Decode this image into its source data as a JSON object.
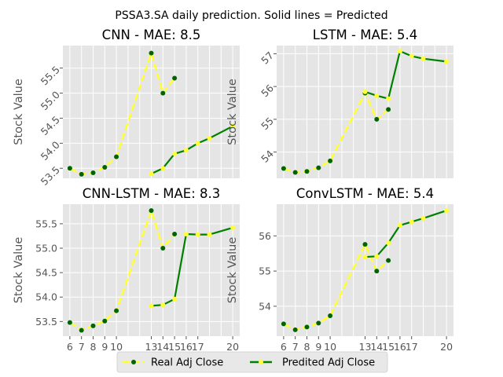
{
  "figure": {
    "suptitle": "PSSA3.SA daily prediction. Solid lines = Predicted"
  },
  "legend": {
    "placement": "bottom-center",
    "entries": [
      {
        "label": "Real Adj Close",
        "line_color": "#ffff33",
        "marker_color": "#006400",
        "style": "dashed"
      },
      {
        "label": "Predited Adj Close",
        "line_color": "#008000",
        "marker_color": "#ffff33",
        "style": "solid"
      }
    ]
  },
  "chart_data": [
    {
      "type": "line",
      "title": "CNN - MAE: 8.5",
      "ylabel": "Stock Value",
      "xlabel": "",
      "grid": true,
      "xlim": [
        5.4,
        20.6
      ],
      "ylim": [
        53.3,
        55.95
      ],
      "x_ticks": [],
      "y_ticks": [
        53.5,
        54.0,
        54.5,
        55.0,
        55.5
      ],
      "y_tick_labels": [
        "53.5",
        "54.0",
        "54.5",
        "55.0",
        "55.5"
      ],
      "y_tick_rotation": 45,
      "series": [
        {
          "name": "Real Adj Close",
          "x": [
            6,
            7,
            8,
            9,
            10,
            13,
            14,
            15
          ],
          "values": [
            53.5,
            53.38,
            53.41,
            53.52,
            53.73,
            55.8,
            55.0,
            55.3
          ]
        },
        {
          "name": "Predited Adj Close",
          "x": [
            13,
            14,
            15,
            16,
            17,
            18,
            20
          ],
          "values": [
            53.39,
            53.5,
            53.79,
            53.86,
            54.0,
            54.1,
            54.34
          ]
        }
      ]
    },
    {
      "type": "line",
      "title": "LSTM - MAE: 5.4",
      "ylabel": "Stock Value",
      "xlabel": "",
      "grid": true,
      "xlim": [
        5.4,
        20.6
      ],
      "ylim": [
        53.2,
        57.25
      ],
      "x_ticks": [],
      "y_ticks": [
        54,
        55,
        56,
        57
      ],
      "y_tick_labels": [
        "54",
        "55",
        "56",
        "57"
      ],
      "y_tick_rotation": 45,
      "series": [
        {
          "name": "Real Adj Close",
          "x": [
            6,
            7,
            8,
            9,
            10,
            13,
            14,
            15
          ],
          "values": [
            53.5,
            53.38,
            53.41,
            53.52,
            53.73,
            55.8,
            55.0,
            55.3
          ]
        },
        {
          "name": "Predited Adj Close",
          "x": [
            13,
            14,
            15,
            16,
            17,
            18,
            20
          ],
          "values": [
            55.84,
            55.72,
            55.63,
            57.08,
            56.93,
            56.85,
            56.76
          ]
        }
      ]
    },
    {
      "type": "line",
      "title": "CNN-LSTM - MAE: 8.3",
      "ylabel": "Stock Value",
      "xlabel": "",
      "grid": true,
      "xlim": [
        5.4,
        20.6
      ],
      "ylim": [
        53.2,
        55.9
      ],
      "x_ticks": [
        6,
        7,
        8,
        9,
        10,
        13,
        14,
        15,
        16,
        17,
        20
      ],
      "x_tick_labels": [
        "6",
        "7",
        "8",
        "9",
        "10",
        "13",
        "14",
        "15",
        "16",
        "17",
        "20"
      ],
      "y_ticks": [
        53.5,
        54.0,
        54.5,
        55.0,
        55.5
      ],
      "y_tick_labels": [
        "53.5",
        "54.0",
        "54.5",
        "55.0",
        "55.5"
      ],
      "y_tick_rotation": 0,
      "series": [
        {
          "name": "Real Adj Close",
          "x": [
            6,
            7,
            8,
            9,
            10,
            13,
            14,
            15
          ],
          "values": [
            53.48,
            53.32,
            53.41,
            53.51,
            53.72,
            55.77,
            55.0,
            55.29
          ]
        },
        {
          "name": "Predited Adj Close",
          "x": [
            13,
            14,
            15,
            16,
            17,
            18,
            20
          ],
          "values": [
            53.82,
            53.84,
            53.96,
            55.29,
            55.28,
            55.28,
            55.42
          ]
        }
      ]
    },
    {
      "type": "line",
      "title": "ConvLSTM - MAE: 5.4",
      "ylabel": "Stock Value",
      "xlabel": "",
      "grid": true,
      "xlim": [
        5.4,
        20.6
      ],
      "ylim": [
        53.15,
        56.9
      ],
      "x_ticks": [
        6,
        7,
        8,
        9,
        10,
        13,
        14,
        15,
        16,
        17,
        20
      ],
      "x_tick_labels": [
        "6",
        "7",
        "8",
        "9",
        "10",
        "13",
        "14",
        "15",
        "16",
        "17",
        "20"
      ],
      "y_ticks": [
        54,
        55,
        56
      ],
      "y_tick_labels": [
        "54",
        "55",
        "56"
      ],
      "y_tick_rotation": 0,
      "series": [
        {
          "name": "Real Adj Close",
          "x": [
            6,
            7,
            8,
            9,
            10,
            13,
            14,
            15
          ],
          "values": [
            53.5,
            53.33,
            53.41,
            53.52,
            53.73,
            55.76,
            55.0,
            55.3
          ]
        },
        {
          "name": "Predited Adj Close",
          "x": [
            13,
            14,
            15,
            16,
            17,
            18,
            20
          ],
          "values": [
            55.4,
            55.42,
            55.8,
            56.3,
            56.4,
            56.5,
            56.72
          ]
        }
      ]
    }
  ]
}
